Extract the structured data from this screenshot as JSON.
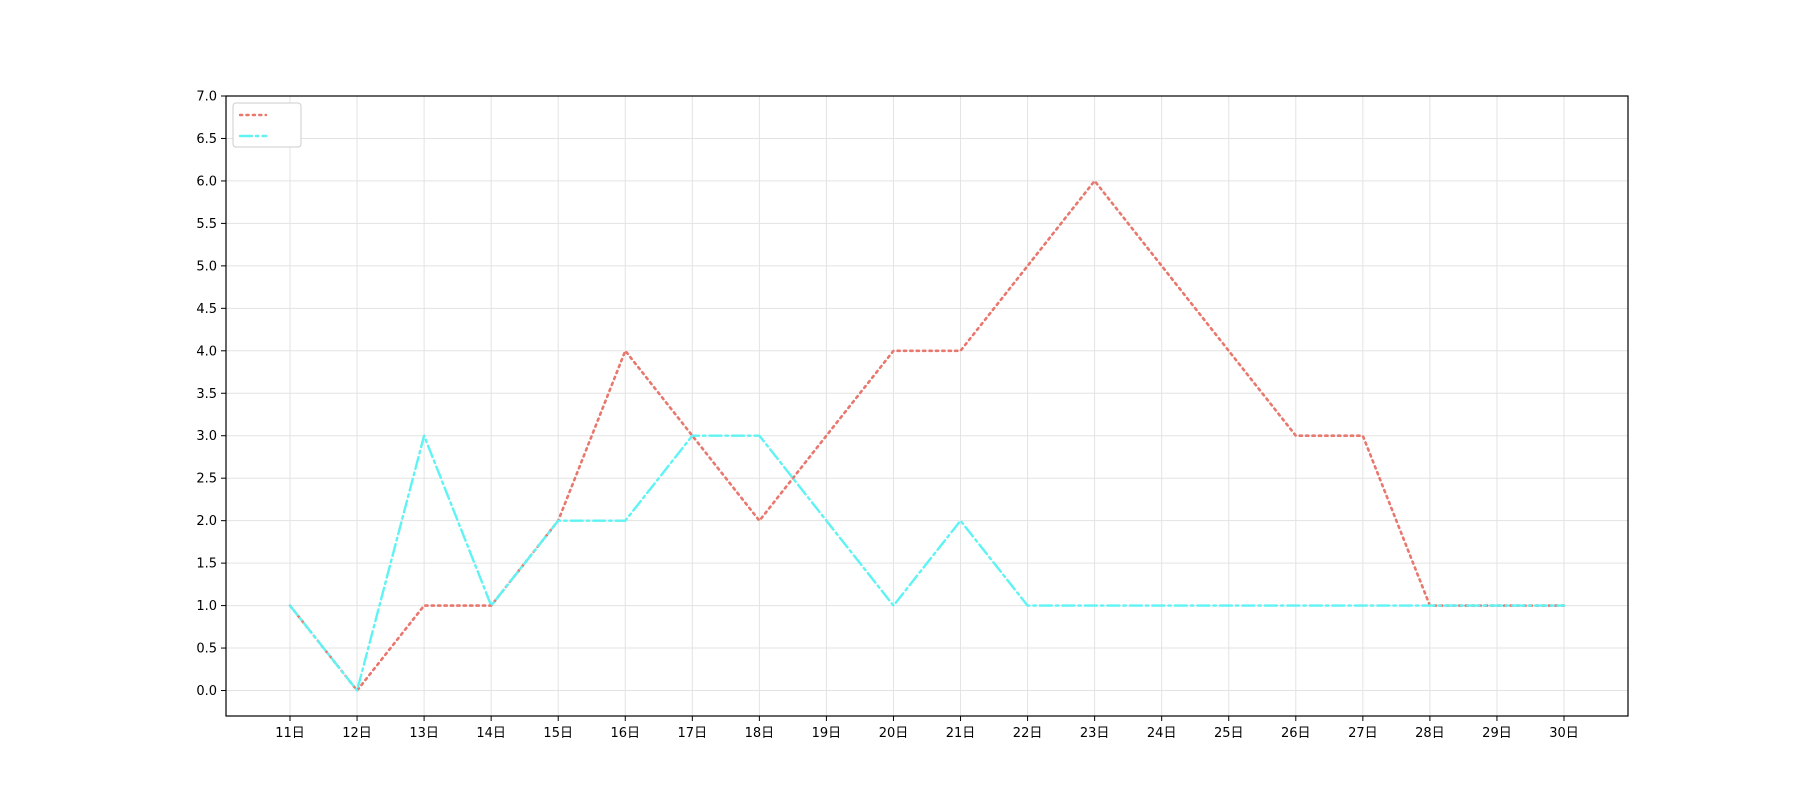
{
  "chart_data": {
    "type": "line",
    "title": "",
    "xlabel": "",
    "ylabel": "",
    "categories": [
      "11日",
      "12日",
      "13日",
      "14日",
      "15日",
      "16日",
      "17日",
      "18日",
      "19日",
      "20日",
      "21日",
      "22日",
      "23日",
      "24日",
      "25日",
      "26日",
      "27日",
      "28日",
      "29日",
      "30日"
    ],
    "series": [
      {
        "name": "",
        "color": "#e8776d",
        "line_style": "dotted",
        "values": [
          1,
          0,
          1,
          1,
          2,
          4,
          3,
          2,
          3,
          4,
          4,
          5,
          6,
          5,
          4,
          3,
          3,
          1,
          1,
          1
        ]
      },
      {
        "name": "",
        "color": "#5ff3f3",
        "line_style": "dashdot",
        "values": [
          1,
          0,
          3,
          1,
          2,
          2,
          3,
          3,
          2,
          1,
          2,
          1,
          1,
          1,
          1,
          1,
          1,
          1,
          1,
          1
        ]
      }
    ],
    "ylim": [
      -0.3,
      7.0
    ],
    "yticks": [
      "0.0",
      "0.5",
      "1.0",
      "1.5",
      "2.0",
      "2.5",
      "3.0",
      "3.5",
      "4.0",
      "4.5",
      "5.0",
      "5.5",
      "6.0",
      "6.5",
      "7.0"
    ],
    "grid": true,
    "legend_position": "top-left"
  }
}
